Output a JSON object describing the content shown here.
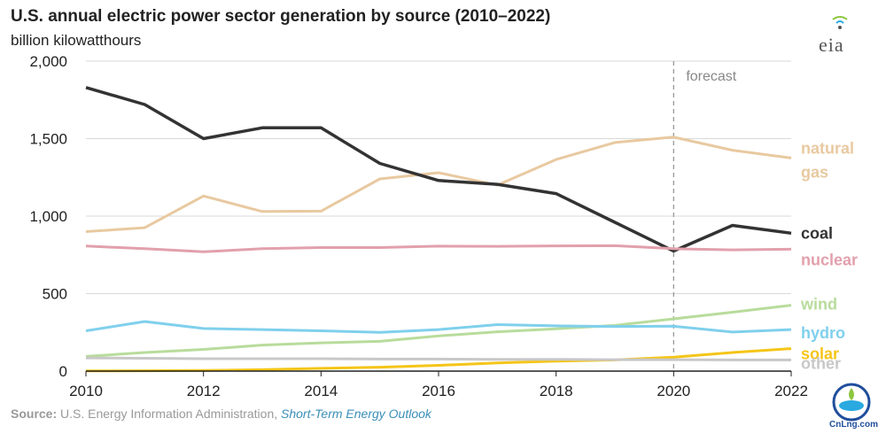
{
  "header": {
    "title": "U.S. annual electric power sector generation by source (2010–2022)",
    "units": "billion kilowatthours",
    "logo_text": "eia"
  },
  "source": {
    "label": "Source:",
    "text": " U.S. Energy Information Administration, ",
    "publication": "Short-Term Energy Outlook"
  },
  "watermark": {
    "text": "CnLng.com"
  },
  "chart_data": {
    "type": "line",
    "title": "U.S. annual electric power sector generation by source (2010–2022)",
    "ylabel": "billion kilowatthours",
    "xlabel": "",
    "xlim": [
      2010,
      2022
    ],
    "ylim": [
      0,
      2000
    ],
    "x_ticks": [
      2010,
      2012,
      2014,
      2016,
      2018,
      2020,
      2022
    ],
    "y_ticks": [
      0,
      500,
      1000,
      1500,
      2000
    ],
    "y_tick_labels": [
      "0",
      "500",
      "1,000",
      "1,500",
      "2,000"
    ],
    "grid": "horizontal",
    "legend": "direct labels at right",
    "forecast_start": 2020,
    "annotation": "forecast",
    "x": [
      2010,
      2011,
      2012,
      2013,
      2014,
      2015,
      2016,
      2017,
      2018,
      2019,
      2020,
      2021,
      2022
    ],
    "series": [
      {
        "name": "natural gas",
        "label_lines": [
          "natural",
          "gas"
        ],
        "color": "#e8c9a0",
        "bold": false,
        "values": [
          900,
          925,
          1130,
          1030,
          1032,
          1240,
          1280,
          1200,
          1365,
          1475,
          1510,
          1425,
          1375
        ]
      },
      {
        "name": "coal",
        "label_lines": [
          "coal"
        ],
        "color": "#333333",
        "bold": true,
        "values": [
          1830,
          1720,
          1500,
          1570,
          1570,
          1340,
          1230,
          1205,
          1145,
          960,
          775,
          940,
          890
        ]
      },
      {
        "name": "nuclear",
        "label_lines": [
          "nuclear"
        ],
        "color": "#e2a0ac",
        "bold": false,
        "values": [
          807,
          790,
          770,
          790,
          797,
          797,
          806,
          805,
          808,
          809,
          790,
          782,
          787
        ]
      },
      {
        "name": "wind",
        "label_lines": [
          "wind"
        ],
        "color": "#b8dc9c",
        "bold": false,
        "values": [
          95,
          120,
          140,
          168,
          182,
          192,
          227,
          254,
          273,
          295,
          337,
          380,
          425
        ]
      },
      {
        "name": "hydro",
        "label_lines": [
          "hydro"
        ],
        "color": "#7fd0ec",
        "bold": false,
        "values": [
          260,
          320,
          275,
          268,
          260,
          250,
          268,
          300,
          292,
          288,
          290,
          252,
          268
        ]
      },
      {
        "name": "solar",
        "label_lines": [
          "solar"
        ],
        "color": "#f5c518",
        "bold": false,
        "values": [
          1,
          2,
          4,
          9,
          18,
          25,
          37,
          53,
          64,
          72,
          90,
          120,
          145
        ]
      },
      {
        "name": "other",
        "label_lines": [
          "other"
        ],
        "color": "#c8c8c8",
        "bold": false,
        "values": [
          85,
          83,
          80,
          80,
          80,
          78,
          78,
          76,
          76,
          74,
          74,
          72,
          72
        ]
      }
    ]
  }
}
